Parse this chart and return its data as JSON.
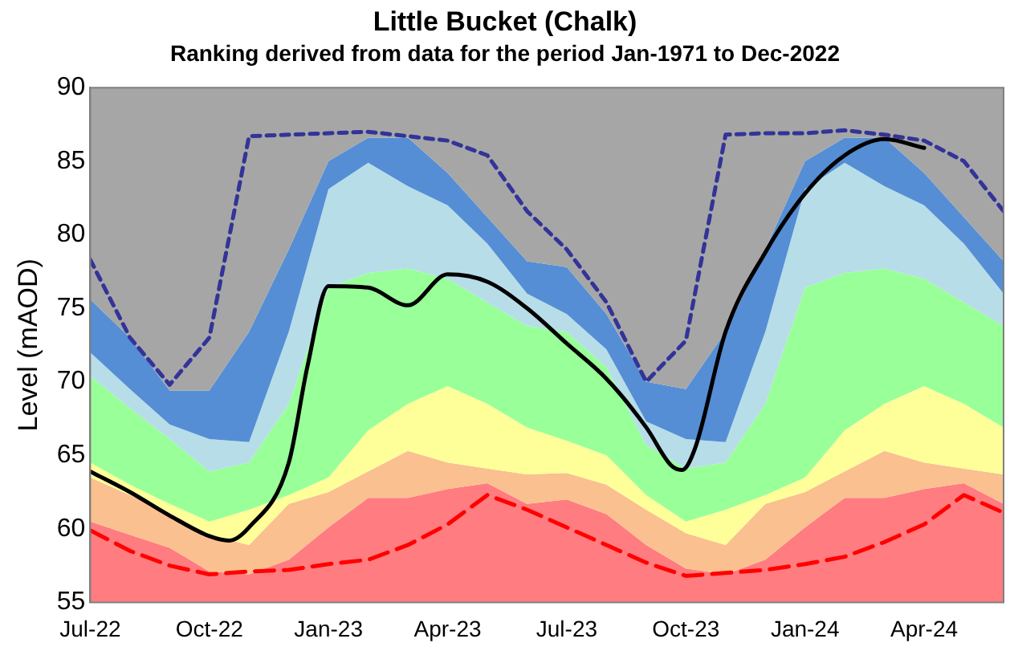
{
  "chart_data": {
    "type": "area",
    "title": "Little Bucket (Chalk)",
    "subtitle": "Ranking derived from data for the period Jan-1971 to Dec-2022",
    "ylabel": "Level (mAOD)",
    "x": [
      "2022-07",
      "2022-08",
      "2022-09",
      "2022-10",
      "2022-11",
      "2022-12",
      "2023-01",
      "2023-02",
      "2023-03",
      "2023-04",
      "2023-05",
      "2023-06",
      "2023-07",
      "2023-08",
      "2023-09",
      "2023-10",
      "2023-11",
      "2023-12",
      "2024-01",
      "2024-02",
      "2024-03",
      "2024-04",
      "2024-05",
      "2024-06"
    ],
    "xlim": [
      "2022-07",
      "2024-06"
    ],
    "xticks": [
      {
        "value": "2022-07",
        "label": "Jul-22"
      },
      {
        "value": "2022-10",
        "label": "Oct-22"
      },
      {
        "value": "2023-01",
        "label": "Jan-23"
      },
      {
        "value": "2023-04",
        "label": "Apr-23"
      },
      {
        "value": "2023-07",
        "label": "Jul-23"
      },
      {
        "value": "2023-10",
        "label": "Oct-23"
      },
      {
        "value": "2024-01",
        "label": "Jan-24"
      },
      {
        "value": "2024-04",
        "label": "Apr-24"
      }
    ],
    "ylim": [
      55,
      90
    ],
    "yticks": [
      55,
      60,
      65,
      70,
      75,
      80,
      85,
      90
    ],
    "grid": false,
    "legend": false,
    "marker": "none",
    "series": [
      {
        "color": "#ff7c80",
        "values": [
          60.5,
          59.6,
          58.7,
          57.1,
          56.9,
          57.9,
          60.1,
          62.1,
          62.1,
          62.7,
          63.1,
          61.7,
          62.0,
          61.0,
          58.9,
          57.3,
          56.9,
          57.9,
          60.1,
          62.1,
          62.1,
          62.7,
          63.1,
          61.7
        ]
      },
      {
        "color": "#fac090",
        "values": [
          63.5,
          62.3,
          61.1,
          59.6,
          58.9,
          61.7,
          62.5,
          63.9,
          65.3,
          64.5,
          64.1,
          63.7,
          63.8,
          63.0,
          61.3,
          59.7,
          58.9,
          61.7,
          62.5,
          63.9,
          65.3,
          64.5,
          64.1,
          63.7
        ]
      },
      {
        "color": "#ffff99",
        "values": [
          64.5,
          63.0,
          61.7,
          60.5,
          61.3,
          62.3,
          63.5,
          66.7,
          68.5,
          69.7,
          68.5,
          66.9,
          66.0,
          65.0,
          62.3,
          60.5,
          61.3,
          62.3,
          63.5,
          66.7,
          68.5,
          69.7,
          68.5,
          66.9
        ]
      },
      {
        "color": "#99ff99",
        "values": [
          70.4,
          68.2,
          66.1,
          63.9,
          64.5,
          68.5,
          76.4,
          77.4,
          77.7,
          77.0,
          75.4,
          73.8,
          73.4,
          71.0,
          65.7,
          64.1,
          64.5,
          68.5,
          76.4,
          77.4,
          77.7,
          77.0,
          75.4,
          73.8
        ]
      },
      {
        "color": "#b7dde8",
        "values": [
          72.0,
          69.5,
          67.1,
          66.1,
          65.9,
          73.4,
          83.1,
          84.9,
          83.3,
          82.0,
          79.4,
          76.0,
          74.6,
          72.2,
          67.3,
          66.1,
          65.9,
          73.4,
          83.1,
          84.9,
          83.3,
          82.0,
          79.4,
          76.0
        ]
      },
      {
        "color": "#558ed5",
        "values": [
          75.6,
          73.0,
          69.4,
          69.4,
          73.4,
          79.0,
          85.0,
          86.6,
          86.6,
          84.2,
          81.2,
          78.2,
          77.8,
          74.6,
          70.0,
          69.5,
          73.4,
          79.0,
          85.0,
          86.6,
          86.6,
          84.2,
          81.2,
          78.2
        ]
      },
      {
        "color": "#a6a6a6",
        "values": [
          90,
          90,
          90,
          90,
          90,
          90,
          90,
          90,
          90,
          90,
          90,
          90,
          90,
          90,
          90,
          90,
          90,
          90,
          90,
          90,
          90,
          90,
          90,
          90
        ]
      },
      {
        "type": "line",
        "color": "#ff0000",
        "line_style": "dashed",
        "values": [
          59.9,
          58.5,
          57.5,
          56.9,
          57.1,
          57.2,
          57.6,
          57.9,
          58.9,
          60.3,
          62.3,
          61.3,
          60.1,
          58.9,
          57.7,
          56.8,
          57.0,
          57.2,
          57.6,
          58.1,
          59.1,
          60.3,
          62.3,
          61.1
        ]
      },
      {
        "type": "line",
        "color": "#333399",
        "line_style": "dotted",
        "values": [
          78.3,
          73.0,
          69.8,
          73.0,
          86.7,
          86.8,
          86.9,
          87.0,
          86.7,
          86.4,
          85.4,
          81.6,
          79.0,
          75.4,
          70.0,
          72.8,
          86.8,
          86.9,
          86.9,
          87.1,
          86.8,
          86.4,
          85.0,
          81.6
        ]
      },
      {
        "type": "line",
        "color": "#000000",
        "line_style": "solid",
        "x": [
          "2022-07-01",
          "2022-08-01",
          "2022-09-01",
          "2022-10-01",
          "2022-10-16",
          "2022-11-01",
          "2022-12-01",
          "2022-12-15",
          "2023-01-01",
          "2023-02-01",
          "2023-03-01",
          "2023-04-01",
          "2023-05-01",
          "2023-06-01",
          "2023-07-01",
          "2023-08-01",
          "2023-09-01",
          "2023-09-20",
          "2023-09-28",
          "2023-10-08",
          "2023-11-01",
          "2023-12-01",
          "2024-01-01",
          "2024-02-01",
          "2024-03-01",
          "2024-04-01"
        ],
        "values": [
          63.9,
          62.5,
          60.9,
          59.5,
          59.2,
          60.1,
          64.5,
          71.0,
          76.5,
          76.4,
          75.2,
          77.3,
          76.8,
          75.0,
          72.6,
          70.2,
          66.9,
          64.3,
          64.0,
          65.5,
          73.4,
          78.8,
          82.8,
          85.4,
          86.5,
          85.9
        ]
      }
    ]
  }
}
